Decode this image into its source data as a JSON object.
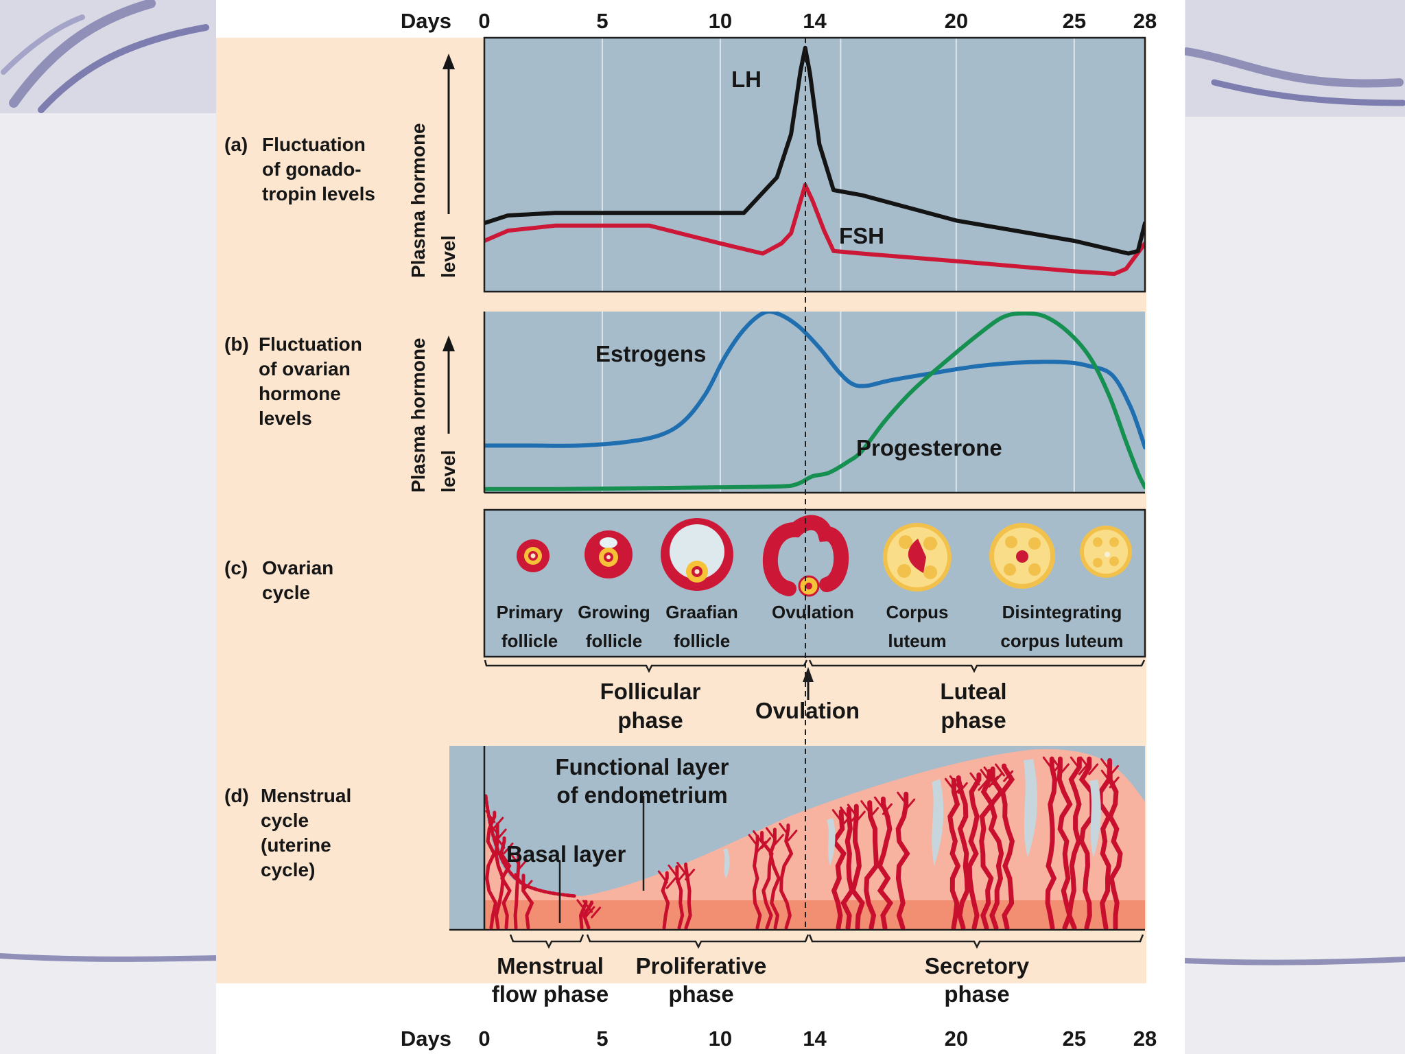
{
  "days_axis": {
    "label": "Days",
    "ticks": [
      {
        "day": 0,
        "label": "0"
      },
      {
        "day": 5,
        "label": "5"
      },
      {
        "day": 10,
        "label": "10"
      },
      {
        "day": 14,
        "label": "14"
      },
      {
        "day": 20,
        "label": "20"
      },
      {
        "day": 25,
        "label": "25"
      },
      {
        "day": 28,
        "label": "28"
      }
    ]
  },
  "sections": {
    "a": {
      "letter": "(a)",
      "lines": [
        "Fluctuation",
        "of gonado-",
        "tropin levels"
      ]
    },
    "b": {
      "letter": "(b)",
      "lines": [
        "Fluctuation",
        "of ovarian",
        "hormone",
        "levels"
      ]
    },
    "c": {
      "letter": "(c)",
      "lines": [
        "Ovarian",
        "cycle"
      ]
    },
    "d": {
      "letter": "(d)",
      "lines": [
        "Menstrual",
        "cycle",
        "(uterine",
        "cycle)"
      ]
    }
  },
  "y_axis_label": {
    "line1": "Plasma hormone",
    "line2": "level"
  },
  "hormones": {
    "lh": "LH",
    "fsh": "FSH",
    "estrogens": "Estrogens",
    "progesterone": "Progesterone"
  },
  "colors": {
    "lh": "#141414",
    "fsh": "#cc1836",
    "estrogens": "#1f6eb0",
    "progesterone": "#169050",
    "panel": "#a6bccb",
    "figure_bg": "#fde6d0",
    "tissue": "#f7b39f",
    "basal": "#f28e72",
    "vessel": "#c8102e"
  },
  "ovarian_stages": [
    {
      "day": 2,
      "lines": [
        "Primary",
        "follicle"
      ]
    },
    {
      "day": 5.6,
      "lines": [
        "Growing",
        "follicle"
      ]
    },
    {
      "day": 9.4,
      "lines": [
        "Graafian",
        "follicle"
      ]
    },
    {
      "day": 14,
      "lines": [
        "Ovulation"
      ]
    },
    {
      "day": 18.7,
      "lines": [
        "Corpus",
        "luteum"
      ]
    },
    {
      "day": 25,
      "lines": [
        "Disintegrating",
        "corpus luteum"
      ]
    }
  ],
  "ovarian_phases": {
    "follicular": [
      "Follicular",
      "phase"
    ],
    "ovulation": "Ovulation",
    "luteal": [
      "Luteal",
      "phase"
    ]
  },
  "uterine_labels": {
    "functional": [
      "Functional layer",
      "of endometrium"
    ],
    "basal": "Basal layer"
  },
  "uterine_phases": {
    "menstrual": [
      "Menstrual",
      "flow phase"
    ],
    "proliferative": [
      "Proliferative",
      "phase"
    ],
    "secretory": [
      "Secretory",
      "phase"
    ]
  },
  "chart_data": [
    {
      "type": "line",
      "title": "Fluctuation of gonadotropin levels",
      "xlabel": "Days",
      "ylabel": "Plasma hormone level",
      "xlim": [
        0,
        28
      ],
      "ylim": [
        0,
        100
      ],
      "series": [
        {
          "name": "LH",
          "points": [
            [
              0,
              27
            ],
            [
              1,
              30
            ],
            [
              3,
              31
            ],
            [
              6,
              31
            ],
            [
              9,
              31
            ],
            [
              11,
              31
            ],
            [
              12.4,
              45
            ],
            [
              13,
              62
            ],
            [
              13.4,
              87
            ],
            [
              13.6,
              96
            ],
            [
              13.8,
              86
            ],
            [
              14.2,
              58
            ],
            [
              14.8,
              40
            ],
            [
              16,
              38
            ],
            [
              20,
              28
            ],
            [
              25,
              20
            ],
            [
              27.3,
              15
            ],
            [
              27.7,
              16
            ],
            [
              28,
              27
            ]
          ]
        },
        {
          "name": "FSH",
          "points": [
            [
              0,
              20
            ],
            [
              1,
              24
            ],
            [
              3,
              26
            ],
            [
              7,
              26
            ],
            [
              10,
              19
            ],
            [
              11.8,
              15
            ],
            [
              12.6,
              19
            ],
            [
              13,
              23
            ],
            [
              13.6,
              42
            ],
            [
              13.9,
              36
            ],
            [
              14.4,
              24
            ],
            [
              14.8,
              16
            ],
            [
              16,
              15
            ],
            [
              20,
              12
            ],
            [
              25,
              8
            ],
            [
              26.7,
              7
            ],
            [
              27.2,
              9
            ],
            [
              28,
              19
            ]
          ]
        }
      ]
    },
    {
      "type": "line",
      "title": "Fluctuation of ovarian hormone levels",
      "xlabel": "Days",
      "ylabel": "Plasma hormone level",
      "xlim": [
        0,
        28
      ],
      "ylim": [
        0,
        100
      ],
      "series": [
        {
          "name": "Estrogens",
          "points": [
            [
              0,
              26
            ],
            [
              2,
              26
            ],
            [
              4,
              26
            ],
            [
              6,
              28
            ],
            [
              7.5,
              32
            ],
            [
              8.5,
              40
            ],
            [
              9.4,
              55
            ],
            [
              10.2,
              75
            ],
            [
              11,
              90
            ],
            [
              11.8,
              99
            ],
            [
              12.4,
              99
            ],
            [
              13.3,
              92
            ],
            [
              14.2,
              80
            ],
            [
              15,
              67
            ],
            [
              15.6,
              60
            ],
            [
              16.2,
              59
            ],
            [
              17.2,
              62
            ],
            [
              19,
              66
            ],
            [
              21,
              70
            ],
            [
              23,
              72
            ],
            [
              24.6,
              72
            ],
            [
              25.6,
              70
            ],
            [
              26.6,
              65
            ],
            [
              27.4,
              47
            ],
            [
              28,
              25
            ]
          ]
        },
        {
          "name": "Progesterone",
          "points": [
            [
              0,
              2
            ],
            [
              3,
              2
            ],
            [
              7,
              2.5
            ],
            [
              10,
              3
            ],
            [
              12.6,
              3.5
            ],
            [
              13.3,
              5
            ],
            [
              13.9,
              9
            ],
            [
              14.6,
              11
            ],
            [
              15.4,
              17
            ],
            [
              16,
              23
            ],
            [
              17,
              40
            ],
            [
              18.2,
              57
            ],
            [
              19.6,
              73
            ],
            [
              21,
              88
            ],
            [
              22,
              97
            ],
            [
              22.9,
              99
            ],
            [
              23.8,
              97
            ],
            [
              24.8,
              88
            ],
            [
              25.7,
              74
            ],
            [
              26.5,
              53
            ],
            [
              27.2,
              28
            ],
            [
              27.7,
              11
            ],
            [
              28,
              3
            ]
          ]
        }
      ]
    }
  ]
}
